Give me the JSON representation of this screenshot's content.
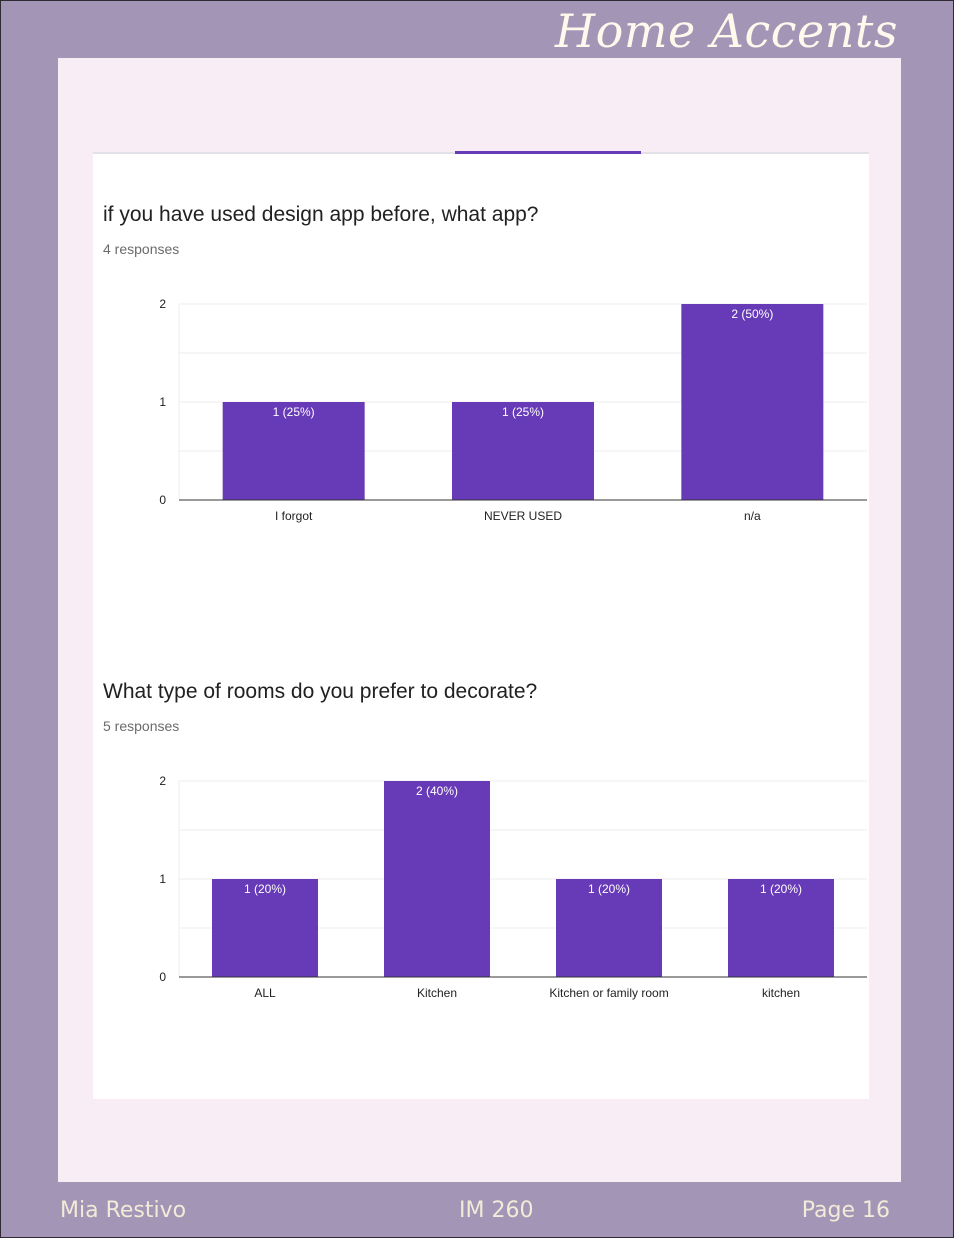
{
  "header": {
    "brand": "Home Accents"
  },
  "footer": {
    "author": "Mia Restivo",
    "course": "IM 260",
    "page": "Page 16"
  },
  "colors": {
    "accent": "#673ab7",
    "background": "#a395b6",
    "page": "#f8ecf5"
  },
  "questions": [
    {
      "title": "if you have used design app before, what app?",
      "responses": "4 responses"
    },
    {
      "title": "What type of rooms do you prefer to decorate?",
      "responses": "5 responses"
    }
  ],
  "chart_data": [
    {
      "type": "bar",
      "title": "if you have used design app before, what app?",
      "categories": [
        "I forgot",
        "NEVER USED",
        "n/a"
      ],
      "values": [
        1,
        1,
        2
      ],
      "labels": [
        "1 (25%)",
        "1 (25%)",
        "2 (50%)"
      ],
      "yticks": [
        "0",
        "1",
        "2"
      ],
      "ylim": [
        0,
        2
      ],
      "grid": true,
      "color": "#673ab7"
    },
    {
      "type": "bar",
      "title": "What type of rooms do you prefer to decorate?",
      "categories": [
        "ALL",
        "Kitchen",
        "Kitchen or family room",
        "kitchen"
      ],
      "values": [
        1,
        2,
        1,
        1
      ],
      "labels": [
        "1 (20%)",
        "2 (40%)",
        "1 (20%)",
        "1 (20%)"
      ],
      "yticks": [
        "0",
        "1",
        "2"
      ],
      "ylim": [
        0,
        2
      ],
      "grid": true,
      "color": "#673ab7"
    }
  ]
}
